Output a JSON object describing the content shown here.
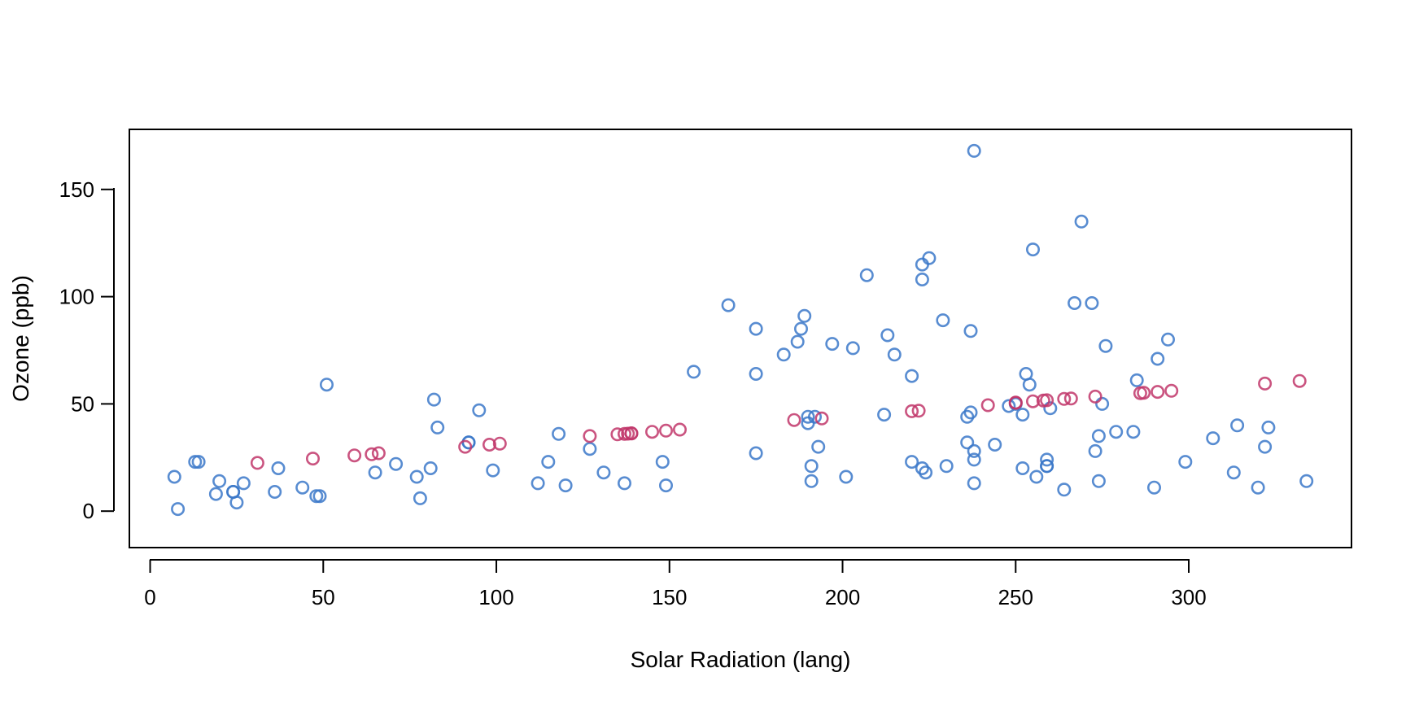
{
  "chart_data": {
    "type": "scatter",
    "title": "",
    "xlabel": "Solar Radiation (lang)",
    "ylabel": "Ozone (ppb)",
    "xlim": [
      -6,
      347
    ],
    "ylim": [
      -17,
      178
    ],
    "xticks": [
      0,
      50,
      100,
      150,
      200,
      250,
      300
    ],
    "yticks": [
      0,
      50,
      100,
      150
    ],
    "grid": false,
    "legend": "none",
    "series": [
      {
        "color": "#3b78c9",
        "marker": "open-circle",
        "points": [
          [
            7,
            16
          ],
          [
            8,
            1
          ],
          [
            13,
            23
          ],
          [
            14,
            23
          ],
          [
            19,
            8
          ],
          [
            20,
            14
          ],
          [
            24,
            9
          ],
          [
            24,
            9
          ],
          [
            25,
            4
          ],
          [
            27,
            13
          ],
          [
            36,
            9
          ],
          [
            37,
            20
          ],
          [
            44,
            11
          ],
          [
            48,
            7
          ],
          [
            49,
            7
          ],
          [
            51,
            59
          ],
          [
            65,
            18
          ],
          [
            71,
            22
          ],
          [
            77,
            16
          ],
          [
            78,
            6
          ],
          [
            81,
            20
          ],
          [
            82,
            52
          ],
          [
            83,
            39
          ],
          [
            92,
            32
          ],
          [
            92,
            32
          ],
          [
            95,
            47
          ],
          [
            99,
            19
          ],
          [
            112,
            13
          ],
          [
            115,
            23
          ],
          [
            118,
            36
          ],
          [
            120,
            12
          ],
          [
            127,
            29
          ],
          [
            131,
            18
          ],
          [
            137,
            13
          ],
          [
            148,
            23
          ],
          [
            149,
            12
          ],
          [
            157,
            65
          ],
          [
            167,
            96
          ],
          [
            175,
            85
          ],
          [
            175,
            64
          ],
          [
            175,
            27
          ],
          [
            183,
            73
          ],
          [
            187,
            79
          ],
          [
            188,
            85
          ],
          [
            189,
            91
          ],
          [
            190,
            44
          ],
          [
            190,
            41
          ],
          [
            191,
            21
          ],
          [
            191,
            14
          ],
          [
            192,
            44
          ],
          [
            193,
            30
          ],
          [
            197,
            78
          ],
          [
            201,
            16
          ],
          [
            203,
            76
          ],
          [
            207,
            110
          ],
          [
            212,
            45
          ],
          [
            213,
            82
          ],
          [
            215,
            73
          ],
          [
            220,
            63
          ],
          [
            220,
            23
          ],
          [
            223,
            115
          ],
          [
            223,
            108
          ],
          [
            223,
            20
          ],
          [
            224,
            18
          ],
          [
            225,
            118
          ],
          [
            229,
            89
          ],
          [
            230,
            21
          ],
          [
            236,
            32
          ],
          [
            236,
            44
          ],
          [
            237,
            84
          ],
          [
            237,
            46
          ],
          [
            238,
            168
          ],
          [
            238,
            28
          ],
          [
            238,
            24
          ],
          [
            238,
            13
          ],
          [
            244,
            31
          ],
          [
            248,
            49
          ],
          [
            250,
            50
          ],
          [
            252,
            45
          ],
          [
            252,
            20
          ],
          [
            253,
            64
          ],
          [
            254,
            59
          ],
          [
            255,
            122
          ],
          [
            256,
            16
          ],
          [
            259,
            24
          ],
          [
            259,
            21
          ],
          [
            259,
            21
          ],
          [
            260,
            48
          ],
          [
            264,
            10
          ],
          [
            267,
            97
          ],
          [
            269,
            135
          ],
          [
            272,
            97
          ],
          [
            273,
            28
          ],
          [
            274,
            35
          ],
          [
            274,
            14
          ],
          [
            275,
            50
          ],
          [
            276,
            77
          ],
          [
            279,
            37
          ],
          [
            284,
            37
          ],
          [
            285,
            61
          ],
          [
            290,
            11
          ],
          [
            291,
            71
          ],
          [
            294,
            80
          ],
          [
            299,
            23
          ],
          [
            307,
            34
          ],
          [
            313,
            18
          ],
          [
            314,
            40
          ],
          [
            320,
            11
          ],
          [
            322,
            30
          ],
          [
            323,
            39
          ],
          [
            334,
            14
          ]
        ]
      },
      {
        "color": "#c1366a",
        "marker": "open-circle",
        "points": [
          [
            31,
            22.5
          ],
          [
            47,
            24.5
          ],
          [
            59,
            26
          ],
          [
            64,
            26.5
          ],
          [
            66,
            27
          ],
          [
            91,
            30
          ],
          [
            98,
            31
          ],
          [
            101,
            31.5
          ],
          [
            127,
            35
          ],
          [
            135,
            35.8
          ],
          [
            137,
            36
          ],
          [
            138,
            36.1
          ],
          [
            139,
            36.2
          ],
          [
            139,
            36.3
          ],
          [
            145,
            37
          ],
          [
            149,
            37.5
          ],
          [
            153,
            38
          ],
          [
            186,
            42.5
          ],
          [
            194,
            43.2
          ],
          [
            220,
            46.6
          ],
          [
            222,
            46.8
          ],
          [
            242,
            49.4
          ],
          [
            250,
            50.5
          ],
          [
            250,
            50.6
          ],
          [
            255,
            51.2
          ],
          [
            258,
            51.6
          ],
          [
            259,
            51.7
          ],
          [
            264,
            52.3
          ],
          [
            266,
            52.5
          ],
          [
            273,
            53.4
          ],
          [
            286,
            55
          ],
          [
            287,
            55.2
          ],
          [
            291,
            55.6
          ],
          [
            295,
            56.1
          ],
          [
            322,
            59.5
          ],
          [
            332,
            60.7
          ]
        ]
      }
    ]
  }
}
